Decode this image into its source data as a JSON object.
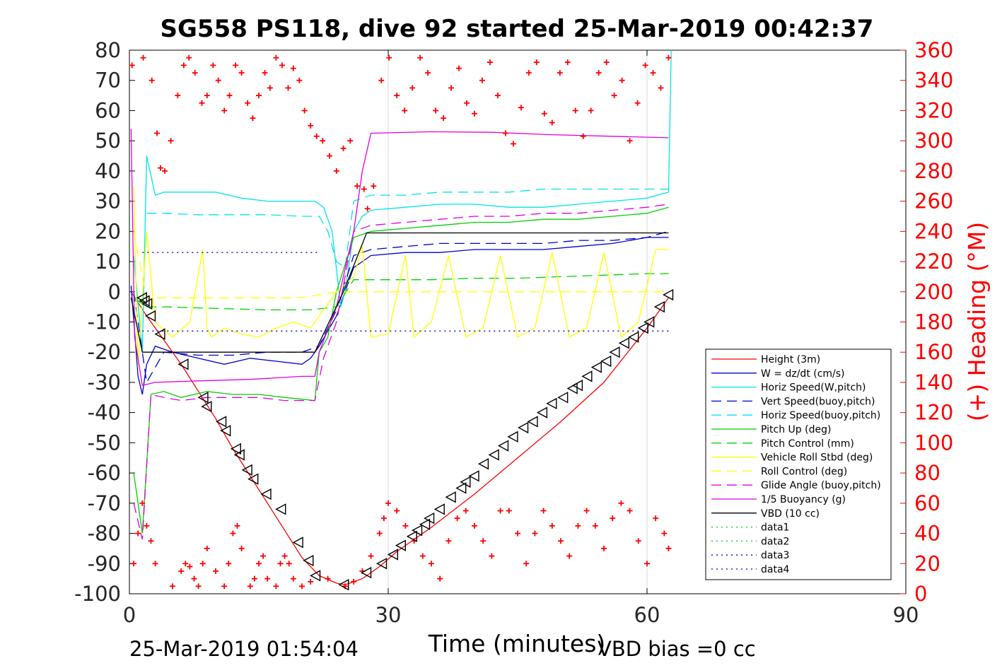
{
  "chart_data": {
    "type": "line",
    "title": "SG558 PS118, dive 92 started 25-Mar-2019 00:42:37",
    "xlabel": "Time (minutes)",
    "ylabel_right": "(+) Heading (°M)",
    "footer_left": "25-Mar-2019 01:54:04",
    "footer_right": "VBD bias =0 cc",
    "xlim": [
      0,
      90
    ],
    "ylim": [
      -100,
      80
    ],
    "ylim_right": [
      0,
      360
    ],
    "xticks": [
      0,
      30,
      60,
      90
    ],
    "yticks": [
      80,
      70,
      60,
      50,
      40,
      30,
      20,
      10,
      0,
      -10,
      -20,
      -30,
      -40,
      -50,
      -60,
      -70,
      -80,
      -90,
      -100
    ],
    "yticks_right": [
      360,
      340,
      320,
      300,
      280,
      260,
      240,
      220,
      200,
      180,
      160,
      140,
      120,
      100,
      80,
      60,
      40,
      20,
      0
    ],
    "grid": "x-major",
    "legend_position": "bottom-right",
    "series": [
      {
        "name": "Height (3m)",
        "color": "#ff0000",
        "style": "solid",
        "x": [
          0.2,
          2,
          4,
          6,
          8,
          10,
          12,
          14,
          16,
          18,
          20,
          22,
          24,
          25,
          27,
          29,
          31,
          35,
          40,
          45,
          50,
          55,
          60,
          62.5
        ],
        "y": [
          0,
          -8,
          -16,
          -24,
          -33,
          -42,
          -52,
          -61,
          -70,
          -79,
          -88,
          -94,
          -96.5,
          -97,
          -95,
          -91,
          -86,
          -78,
          -67,
          -55,
          -43,
          -30,
          -12,
          -2
        ]
      },
      {
        "name": "W = dz/dt (cm/s)",
        "color": "#0000d0",
        "style": "solid",
        "x": [
          0.2,
          1,
          1.5,
          2,
          3,
          5,
          8,
          11,
          14,
          17,
          20,
          21,
          22,
          24,
          25,
          26,
          28,
          32,
          36,
          40,
          44,
          48,
          52,
          56,
          60,
          62.5
        ],
        "y": [
          2,
          -28,
          -34,
          -24,
          -18,
          -20,
          -22,
          -24,
          -22,
          -23,
          -24,
          -22,
          -18,
          -8,
          0,
          8,
          12,
          13,
          13,
          14,
          14,
          14,
          15,
          16,
          18,
          18
        ]
      },
      {
        "name": "Horiz Speed(W,pitch)",
        "color": "#00e5e5",
        "style": "solid",
        "x": [
          0.5,
          1.5,
          2,
          3,
          4,
          7,
          10,
          13,
          16,
          19,
          21.5,
          22.5,
          23.5,
          24.5,
          25,
          26,
          27,
          28,
          32,
          36,
          40,
          44,
          48,
          52,
          56,
          60,
          62.5,
          62.8
        ],
        "y": [
          12,
          -20,
          45,
          32,
          33,
          33,
          33,
          31,
          30,
          30,
          30,
          28,
          20,
          -5,
          0,
          20,
          25,
          27,
          28,
          29,
          29,
          28,
          28,
          29,
          30,
          31,
          33,
          80
        ]
      },
      {
        "name": "Vert Speed(buoy,pitch)",
        "color": "#0000d0",
        "style": "dashed",
        "x": [
          0.5,
          2,
          4,
          8,
          12,
          16,
          20,
          22,
          24,
          26,
          28,
          32,
          36,
          40,
          44,
          48,
          52,
          56,
          60,
          62.5
        ],
        "y": [
          0,
          -30,
          -20,
          -21,
          -21,
          -20,
          -20,
          -18,
          -6,
          12,
          14,
          15,
          16,
          16,
          16,
          16,
          17,
          17,
          18,
          20
        ]
      },
      {
        "name": "Horiz Speed(buoy,pitch)",
        "color": "#00e5e5",
        "style": "dashed",
        "x": [
          2,
          4,
          8,
          12,
          16,
          20,
          22,
          23,
          24,
          25,
          26,
          28,
          32,
          36,
          40,
          44,
          48,
          52,
          56,
          60,
          62.5
        ],
        "y": [
          26,
          26,
          25.5,
          25.5,
          25.5,
          25,
          25,
          20,
          10,
          8,
          30,
          32,
          32,
          33,
          33,
          33,
          34,
          34,
          34,
          34,
          34
        ]
      },
      {
        "name": "Pitch Up (deg)",
        "color": "#00d000",
        "style": "solid",
        "x": [
          0.5,
          1.5,
          2.5,
          4,
          6,
          9,
          12,
          15,
          18,
          21.5,
          22,
          23,
          24,
          26,
          28,
          32,
          36,
          40,
          44,
          48,
          52,
          56,
          60,
          62.5
        ],
        "y": [
          -60,
          -80,
          -34,
          -33,
          -35,
          -33,
          -34,
          -34,
          -35,
          -36,
          -20,
          -15,
          0,
          18,
          20,
          21,
          22,
          23,
          23,
          24,
          24,
          25,
          26,
          28
        ]
      },
      {
        "name": "Pitch Control (mm)",
        "color": "#00d000",
        "style": "dashed",
        "x": [
          0.5,
          2,
          4,
          10,
          16,
          21,
          24,
          26,
          30,
          35,
          40,
          45,
          50,
          55,
          60,
          62.5
        ],
        "y": [
          -2,
          -5,
          -5,
          -5.5,
          -6,
          -6,
          -5,
          4,
          4,
          4,
          4.5,
          4.5,
          5,
          5.5,
          6,
          6
        ]
      },
      {
        "name": "Vehicle Roll Stbd (deg)",
        "color": "#ffff00",
        "style": "solid",
        "x": [
          0.5,
          1,
          2,
          3,
          5,
          7,
          8.5,
          9,
          9.5,
          11,
          13,
          15,
          17,
          19,
          21,
          22,
          24,
          26,
          27,
          28,
          30,
          32,
          33,
          35,
          37,
          39,
          41,
          43,
          45,
          47,
          49,
          51,
          53,
          55,
          57,
          59,
          61,
          62.5
        ],
        "y": [
          35,
          -25,
          20,
          -10,
          -15,
          -10,
          14,
          -12,
          -15,
          -12,
          -14,
          -15,
          -12,
          -10,
          -12,
          -8,
          0,
          5,
          15,
          -15,
          -14,
          12,
          -15,
          -10,
          12,
          -15,
          -12,
          12,
          -15,
          -12,
          13,
          -15,
          -12,
          13,
          -15,
          -10,
          14,
          14
        ]
      },
      {
        "name": "Roll Control (deg)",
        "color": "#ffff00",
        "style": "dashed",
        "x": [
          0.5,
          2,
          5,
          10,
          15,
          20,
          24,
          28,
          35,
          40,
          45,
          50,
          55,
          60,
          62.5
        ],
        "y": [
          20,
          -2,
          -2,
          -2,
          -2,
          -2,
          0,
          0,
          0,
          0,
          0,
          0,
          0,
          0,
          0
        ]
      },
      {
        "name": "Glide Angle (buoy,pitch)",
        "color": "#e000e0",
        "style": "dashed",
        "x": [
          0.5,
          1.5,
          2.5,
          4,
          6,
          9,
          12,
          15,
          18,
          21.5,
          22.5,
          24,
          26,
          28,
          32,
          36,
          40,
          44,
          48,
          52,
          56,
          60,
          62.5
        ],
        "y": [
          -70,
          -82,
          -34,
          -35,
          -36,
          -35,
          -35,
          -35,
          -36,
          -36,
          -22,
          -10,
          20,
          22,
          23,
          24,
          25,
          25,
          26,
          26,
          27,
          28,
          29
        ]
      },
      {
        "name": "1/5 Buoyancy (g)",
        "color": "#e000e0",
        "style": "solid",
        "x": [
          0.2,
          0.6,
          1.5,
          3,
          8,
          14,
          20,
          21.5,
          22,
          24,
          26,
          27,
          28,
          35,
          42,
          49,
          56,
          62.5
        ],
        "y": [
          54,
          -15,
          -31,
          -30,
          -29.5,
          -29,
          -28,
          -28,
          -20,
          -5,
          20,
          40,
          52.5,
          53,
          52.8,
          52,
          51.5,
          51
        ]
      },
      {
        "name": "VBD (10 cc)",
        "color": "#000000",
        "style": "solid",
        "x": [
          0.2,
          1.5,
          3,
          10,
          20,
          21.5,
          24.8,
          27.5,
          35,
          45,
          55,
          62.5
        ],
        "y": [
          -2,
          -20,
          -20,
          -20,
          -20,
          -20,
          0,
          19.5,
          19.5,
          19.5,
          19.5,
          19.5
        ]
      },
      {
        "name": "data1",
        "color": "#00d000",
        "style": "dotted",
        "x": [],
        "y": []
      },
      {
        "name": "data2",
        "color": "#00d000",
        "style": "dotted",
        "x": [],
        "y": []
      },
      {
        "name": "data3",
        "color": "#0000d0",
        "style": "dotted",
        "x": [
          1.5,
          22
        ],
        "y": [
          13,
          13
        ]
      },
      {
        "name": "data4",
        "color": "#0000d0",
        "style": "dotted",
        "x": [
          1.5,
          62.5
        ],
        "y": [
          -13,
          -13
        ]
      }
    ],
    "heading": {
      "color": "#ff0000",
      "axis": "right",
      "x": [
        0.3,
        1.6,
        2.6,
        3.2,
        3.6,
        4.1,
        4.8,
        5.6,
        6.3,
        6.9,
        7.6,
        8.4,
        9.0,
        9.7,
        10.3,
        11.0,
        11.6,
        12.3,
        13.0,
        13.7,
        14.3,
        15.0,
        15.7,
        16.3,
        17.0,
        17.7,
        18.4,
        19.0,
        19.7,
        20.3,
        21.0,
        21.7,
        22.4,
        23.2,
        24.0,
        24.8,
        25.6,
        26.4,
        27.2,
        27.6,
        28.3,
        29.2,
        30.1,
        31.0,
        31.9,
        32.8,
        33.7,
        34.6,
        35.5,
        36.4,
        37.3,
        38.2,
        39.1,
        40.0,
        40.9,
        41.8,
        42.7,
        43.6,
        44.5,
        45.4,
        46.3,
        47.2,
        48.1,
        49.0,
        49.9,
        50.8,
        51.7,
        52.6,
        53.5,
        54.4,
        55.3,
        56.2,
        57.1,
        58.0,
        58.9,
        59.8,
        60.7,
        61.6,
        62.5
      ],
      "y": [
        350,
        355,
        340,
        305,
        282,
        280,
        300,
        330,
        350,
        355,
        345,
        325,
        330,
        350,
        340,
        320,
        330,
        350,
        345,
        325,
        315,
        330,
        345,
        335,
        355,
        350,
        335,
        348,
        340,
        320,
        310,
        303,
        300,
        290,
        280,
        295,
        300,
        270,
        268,
        255,
        270,
        340,
        355,
        330,
        320,
        335,
        355,
        345,
        320,
        315,
        335,
        348,
        325,
        318,
        340,
        352,
        330,
        305,
        298,
        322,
        345,
        352,
        318,
        312,
        345,
        352,
        320,
        303,
        320,
        345,
        352,
        330,
        340,
        300,
        325,
        350,
        345,
        335,
        355
      ]
    },
    "heading_low": {
      "color": "#ff0000",
      "axis": "right",
      "x": [
        0.5,
        1,
        1.5,
        2,
        2.5,
        3,
        5,
        6,
        6.5,
        7,
        7.5,
        8,
        8.5,
        9,
        10,
        11,
        11.5,
        12,
        12.5,
        13,
        14,
        14.5,
        15,
        15.5,
        16,
        17,
        17.5,
        18,
        18.5,
        19,
        20,
        21,
        23,
        25,
        26,
        27,
        28,
        29,
        29.5,
        30,
        31,
        32,
        33,
        34,
        35,
        36,
        37,
        38,
        39,
        40,
        41,
        42,
        43,
        44,
        45,
        46,
        47,
        48,
        49,
        50,
        51,
        52,
        53,
        54,
        55,
        56,
        57,
        58,
        59,
        60,
        61,
        62,
        62.5
      ],
      "y": [
        20,
        40,
        60,
        45,
        35,
        20,
        5,
        15,
        20,
        18,
        10,
        5,
        20,
        30,
        15,
        5,
        20,
        40,
        45,
        30,
        5,
        10,
        20,
        25,
        10,
        5,
        20,
        25,
        20,
        10,
        5,
        8,
        10,
        5,
        8,
        15,
        25,
        40,
        50,
        60,
        55,
        45,
        35,
        25,
        20,
        10,
        35,
        50,
        55,
        45,
        35,
        25,
        55,
        55,
        40,
        20,
        40,
        55,
        45,
        35,
        25,
        45,
        55,
        45,
        30,
        50,
        60,
        55,
        35,
        20,
        50,
        40,
        30
      ]
    },
    "markers": {
      "symbol": "triangle-left",
      "color": "#000000",
      "x": [
        1.5,
        1.8,
        2.1,
        2.5,
        3.6,
        6.3,
        8.6,
        9.0,
        10.7,
        11.2,
        12.4,
        12.8,
        13.7,
        14.4,
        15.9,
        17.6,
        19.6,
        20.8,
        21.6,
        24.9,
        27.5,
        29.3,
        30.6,
        31.5,
        32.8,
        33.4,
        34.3,
        34.8,
        36.0,
        37.3,
        38.5,
        39.0,
        40.0,
        41.1,
        42.3,
        43.4,
        44.5,
        45.7,
        46.8,
        47.9,
        49.0,
        50.3,
        51.4,
        52.0,
        53.1,
        54.2,
        55.3,
        56.3,
        57.4,
        58.5,
        59.6,
        60.3,
        61.5,
        62.5
      ],
      "y": [
        -2,
        -3,
        -4,
        -8,
        -14,
        -24,
        -35,
        -38,
        -43,
        -46,
        -52,
        -54,
        -59,
        -62,
        -67,
        -72,
        -83,
        -89,
        -94,
        -97,
        -93,
        -90,
        -87,
        -84,
        -81,
        -79,
        -77,
        -75,
        -72,
        -68,
        -65,
        -63,
        -61,
        -57,
        -54,
        -51,
        -48,
        -45,
        -43,
        -40,
        -37,
        -35,
        -32,
        -31,
        -28,
        -25,
        -23,
        -20,
        -17,
        -15,
        -12,
        -10,
        -5,
        -1
      ]
    }
  }
}
